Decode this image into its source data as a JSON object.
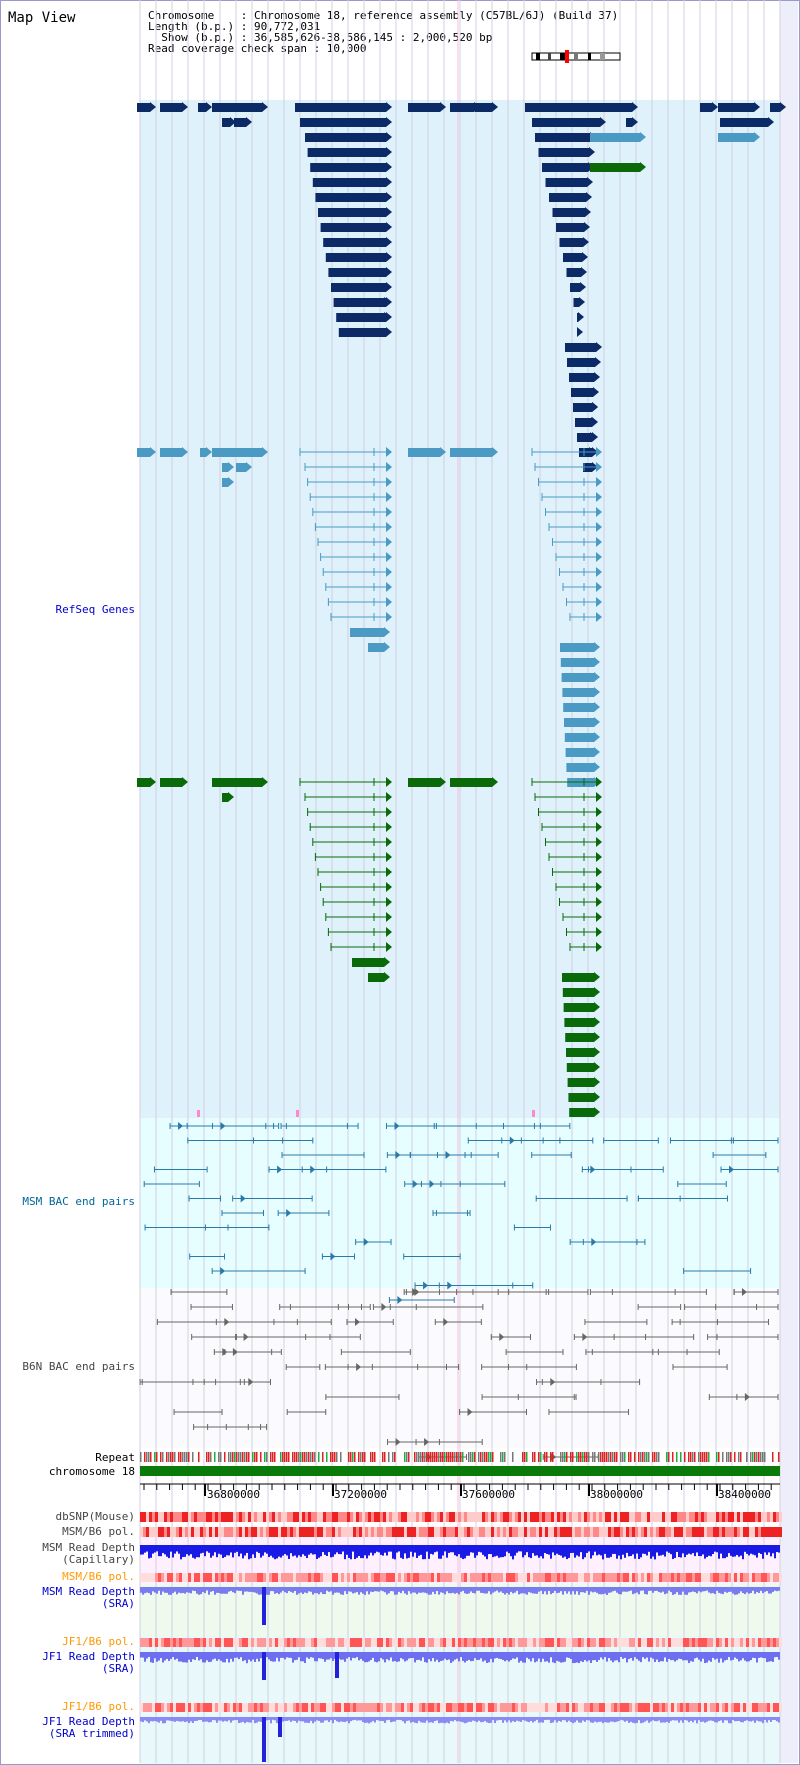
{
  "title": "Map View",
  "info": {
    "chromosome": "Chromosome    : Chromosome 18, reference assembly (C57BL/6J) (Build 37)",
    "length": "Length (b.p.) : 90,772,031",
    "show": "  Show (b.p.) : 36,585,626-38,586,145 : 2,000,520 bp",
    "span": "Read coverage check span : 10,000"
  },
  "tracks": {
    "refseq": "RefSeq Genes",
    "msm_bac": "MSM BAC end pairs",
    "b6n_bac": "B6N BAC end pairs",
    "repeat": "Repeat",
    "chromosome": "chromosome 18",
    "dbsnp": "dbSNP(Mouse)",
    "msm_b6_pol1": "MSM/B6 pol.",
    "msm_depth_cap": "MSM Read Depth\n(Capillary)",
    "msm_b6_pol2": "MSM/B6 pol.",
    "msm_depth_sra": "MSM Read Depth\n(SRA)",
    "jf1_b6_pol1": "JF1/B6 pol.",
    "jf1_depth_sra": "JF1 Read Depth\n(SRA)",
    "jf1_b6_pol2": "JF1/B6 pol.",
    "jf1_depth_trim": "JF1 Read Depth\n(SRA trimmed)"
  },
  "axis_ticks": [
    "36800000",
    "37200000",
    "37600000",
    "38000000",
    "38400000"
  ],
  "colors": {
    "refseq_bg": "#dff1fb",
    "bac_bg": "#e6feff",
    "gene_dark": "#0b2a66",
    "gene_light": "#4a9ac4",
    "gene_green": "#0a6a0a",
    "chrom_bar": "#0a7a0a"
  }
}
